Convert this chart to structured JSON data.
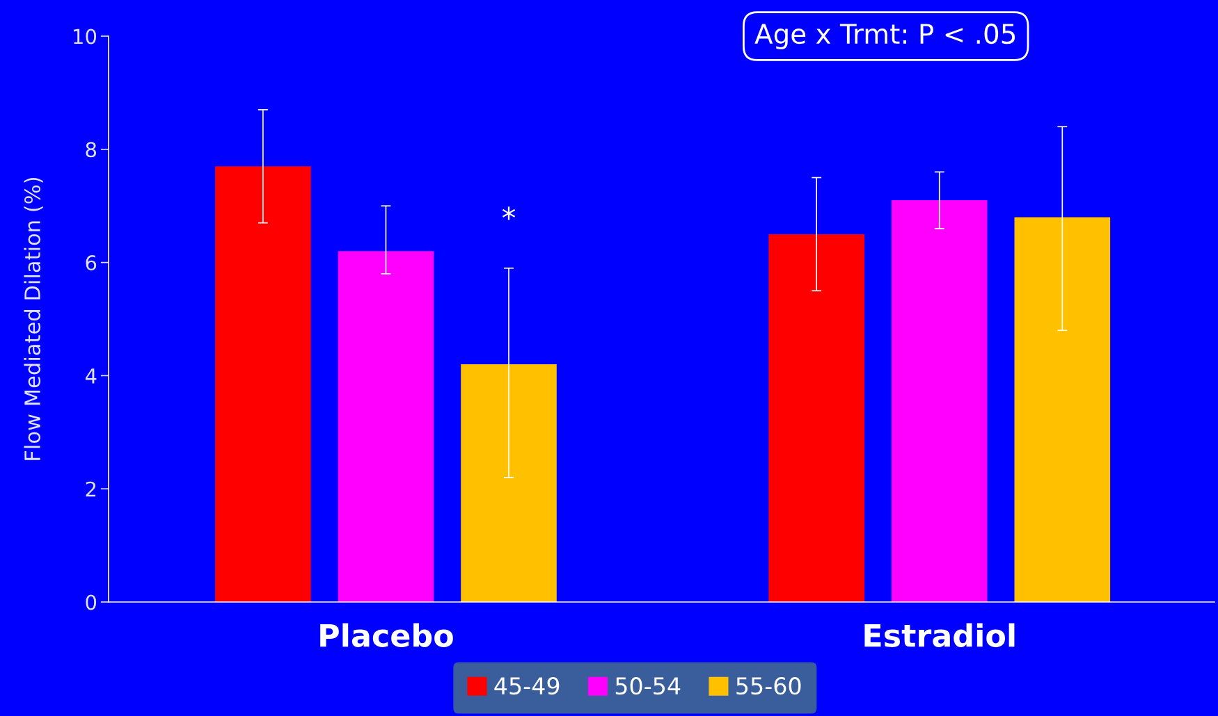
{
  "chart_data": {
    "type": "bar",
    "ylabel": "Flow Mediated Dilation (%)",
    "categories": [
      "Placebo",
      "Estradiol"
    ],
    "series": [
      {
        "name": "45-49",
        "color": "#ff0000",
        "values": [
          7.7,
          6.5
        ],
        "errors": [
          [
            6.7,
            8.7
          ],
          [
            5.5,
            7.5
          ]
        ]
      },
      {
        "name": "50-54",
        "color": "#ff00ff",
        "values": [
          6.2,
          7.1
        ],
        "errors": [
          [
            5.8,
            7.0
          ],
          [
            6.6,
            7.6
          ]
        ]
      },
      {
        "name": "55-60",
        "color": "#ffc000",
        "values": [
          4.2,
          6.8
        ],
        "errors": [
          [
            2.2,
            5.9
          ],
          [
            4.8,
            8.4
          ]
        ]
      }
    ],
    "ylim": [
      0,
      10
    ],
    "yticks": [
      0,
      2,
      4,
      6,
      8,
      10
    ],
    "grid": false,
    "legend": "bottom",
    "annotations": [
      "Age x Trmt: P < .05",
      "*"
    ]
  }
}
